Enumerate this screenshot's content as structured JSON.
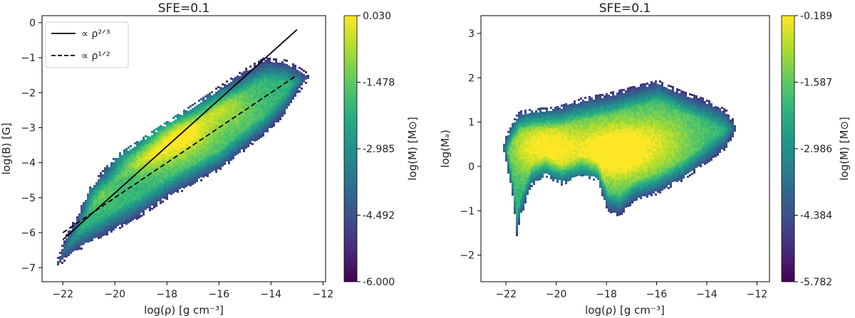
{
  "chart_data": [
    {
      "type": "heatmap",
      "title": "SFE=0.1",
      "xlabel": "log(ρ) [g cm⁻³]",
      "ylabel": "log(B) [G]",
      "xlim": [
        -22.8,
        -11.9
      ],
      "ylim": [
        -7.4,
        0.2
      ],
      "xticks": [
        -22,
        -20,
        -18,
        -16,
        -14,
        -12
      ],
      "yticks": [
        0,
        -1,
        -2,
        -3,
        -4,
        -5,
        -6,
        -7
      ],
      "colorbar": {
        "label": "log(M) [M⊙]",
        "min": -6.0,
        "max": 0.03,
        "ticks": [
          "0.030",
          "-1.478",
          "-2.985",
          "-4.492",
          "-6.000"
        ],
        "tick_values": [
          0.03,
          -1.478,
          -2.985,
          -4.492,
          -6.0
        ]
      },
      "legend": {
        "placement": "top-left",
        "entries": [
          {
            "label": "∝ ρ²ᐟ³",
            "style": "solid"
          },
          {
            "label": "∝ ρ¹ᐟ²",
            "style": "dashed"
          }
        ]
      },
      "lines": [
        {
          "name": "rho^(2/3)",
          "style": "solid",
          "x": [
            -22.0,
            -13.0
          ],
          "y": [
            -6.2,
            -0.2
          ]
        },
        {
          "name": "rho^(1/2)",
          "style": "dashed",
          "x": [
            -22.0,
            -13.0
          ],
          "y": [
            -6.0,
            -1.5
          ]
        }
      ],
      "density_region": {
        "upper": [
          [
            -22.2,
            -6.7
          ],
          [
            -22.0,
            -6.2
          ],
          [
            -21.5,
            -5.5
          ],
          [
            -21.0,
            -4.7
          ],
          [
            -20.6,
            -4.3
          ],
          [
            -20.0,
            -3.8
          ],
          [
            -19.0,
            -3.3
          ],
          [
            -18.0,
            -2.8
          ],
          [
            -17.0,
            -2.3
          ],
          [
            -16.0,
            -1.8
          ],
          [
            -15.0,
            -1.3
          ],
          [
            -14.3,
            -1.0
          ],
          [
            -13.5,
            -1.05
          ],
          [
            -13.0,
            -1.25
          ],
          [
            -12.6,
            -1.45
          ]
        ],
        "lower": [
          [
            -22.2,
            -6.95
          ],
          [
            -22.0,
            -6.8
          ],
          [
            -21.5,
            -6.5
          ],
          [
            -21.0,
            -6.3
          ],
          [
            -20.0,
            -5.9
          ],
          [
            -19.0,
            -5.5
          ],
          [
            -18.0,
            -5.0
          ],
          [
            -17.0,
            -4.6
          ],
          [
            -16.0,
            -4.2
          ],
          [
            -15.0,
            -3.6
          ],
          [
            -14.3,
            -3.2
          ],
          [
            -13.5,
            -2.6
          ],
          [
            -13.0,
            -2.0
          ],
          [
            -12.6,
            -1.6
          ]
        ],
        "peaks": [
          {
            "x": -17.8,
            "y": -3.1,
            "sx": 1.0,
            "sy": 0.45,
            "w": 1.0
          },
          {
            "x": -19.2,
            "y": -3.8,
            "sx": 1.0,
            "sy": 0.35,
            "w": 0.6
          },
          {
            "x": -16.0,
            "y": -2.4,
            "sx": 0.9,
            "sy": 0.4,
            "w": 0.5
          },
          {
            "x": -21.0,
            "y": -4.8,
            "sx": 0.6,
            "sy": 0.3,
            "w": 0.4
          }
        ]
      }
    },
    {
      "type": "heatmap",
      "title": "SFE=0.1",
      "xlabel": "log(ρ) [g cm⁻³]",
      "ylabel": "log(Mₐ)",
      "xlim": [
        -23.0,
        -11.5
      ],
      "ylim": [
        -2.6,
        3.4
      ],
      "xticks": [
        -22,
        -20,
        -18,
        -16,
        -14,
        -12
      ],
      "yticks": [
        3,
        2,
        1,
        0,
        -1,
        -2
      ],
      "colorbar": {
        "label": "log(M) [M⊙]",
        "min": -5.782,
        "max": -0.189,
        "ticks": [
          "-0.189",
          "-1.587",
          "-2.986",
          "-4.384",
          "-5.782"
        ],
        "tick_values": [
          -0.189,
          -1.587,
          -2.986,
          -4.384,
          -5.782
        ]
      },
      "density_region": {
        "upper": [
          [
            -22.1,
            0.6
          ],
          [
            -21.8,
            1.0
          ],
          [
            -21.5,
            1.25
          ],
          [
            -21.0,
            1.3
          ],
          [
            -20.0,
            1.35
          ],
          [
            -19.0,
            1.55
          ],
          [
            -18.0,
            1.65
          ],
          [
            -17.0,
            1.8
          ],
          [
            -16.0,
            1.95
          ],
          [
            -15.0,
            1.7
          ],
          [
            -14.0,
            1.5
          ],
          [
            -13.3,
            1.3
          ],
          [
            -12.9,
            1.0
          ]
        ],
        "lower": [
          [
            -22.1,
            0.3
          ],
          [
            -21.8,
            -0.6
          ],
          [
            -21.6,
            -1.6
          ],
          [
            -21.5,
            -1.2
          ],
          [
            -21.0,
            -0.4
          ],
          [
            -20.5,
            -0.2
          ],
          [
            -19.8,
            -0.4
          ],
          [
            -19.0,
            -0.2
          ],
          [
            -18.4,
            -0.3
          ],
          [
            -18.0,
            -1.0
          ],
          [
            -17.5,
            -1.1
          ],
          [
            -17.0,
            -0.8
          ],
          [
            -16.0,
            -0.6
          ],
          [
            -15.0,
            -0.3
          ],
          [
            -14.0,
            0.1
          ],
          [
            -13.3,
            0.4
          ],
          [
            -12.9,
            0.8
          ]
        ],
        "peaks": [
          {
            "x": -17.8,
            "y": 0.35,
            "sx": 1.1,
            "sy": 0.5,
            "w": 1.0
          },
          {
            "x": -20.3,
            "y": 0.45,
            "sx": 0.8,
            "sy": 0.5,
            "w": 0.75
          },
          {
            "x": -21.4,
            "y": 0.5,
            "sx": 0.5,
            "sy": 0.5,
            "w": 0.3
          },
          {
            "x": -15.8,
            "y": 0.6,
            "sx": 1.0,
            "sy": 0.5,
            "w": 0.45
          }
        ]
      }
    }
  ]
}
